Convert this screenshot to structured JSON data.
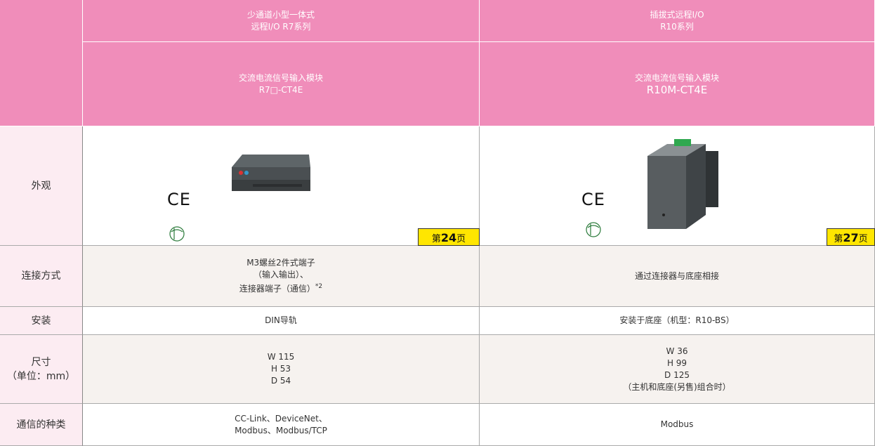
{
  "header": {
    "columns": [
      {
        "series_lines": [
          "少通道小型一体式",
          "远程I/O R7系列"
        ],
        "module_lines": [
          "交流电流信号输入模块",
          "R7□-CT4E"
        ]
      },
      {
        "series_lines": [
          "插拔式远程I/O",
          "R10系列"
        ],
        "module_lines": [
          "交流电流信号输入模块",
          "R10M-CT4E"
        ]
      }
    ]
  },
  "rows": [
    {
      "label": [
        "外观"
      ],
      "cells": [
        {
          "cert": "CE",
          "page_ref": {
            "prefix": "第",
            "number": 24,
            "suffix": "页"
          }
        },
        {
          "cert": "CE",
          "page_ref": {
            "prefix": "第",
            "number": 27,
            "suffix": "页"
          }
        }
      ]
    },
    {
      "label": [
        "连接方式"
      ],
      "cells": [
        {
          "lines": [
            "M3螺丝2件式端子",
            "（输入输出）、",
            "连接器端子（通信）"
          ],
          "note": "*2"
        },
        {
          "lines": [
            "通过连接器与底座相接"
          ]
        }
      ]
    },
    {
      "label": [
        "安装"
      ],
      "cells": [
        {
          "lines": [
            "DIN导轨"
          ]
        },
        {
          "lines": [
            "安装于底座（机型：R10-BS）"
          ]
        }
      ]
    },
    {
      "label": [
        "尺寸",
        "（单位：mm）"
      ],
      "cells": [
        {
          "lines": [
            "W 115",
            "H 53",
            "D 54"
          ]
        },
        {
          "lines": [
            "W 36",
            "H 99",
            "D 125",
            "（主机和底座(另售)组合时）"
          ]
        }
      ]
    },
    {
      "label": [
        "通信的种类"
      ],
      "cells": [
        {
          "lines": [
            "CC-Link、DeviceNet、",
            "Modbus、Modbus/TCP"
          ]
        },
        {
          "lines": [
            "Modbus"
          ]
        }
      ]
    }
  ]
}
